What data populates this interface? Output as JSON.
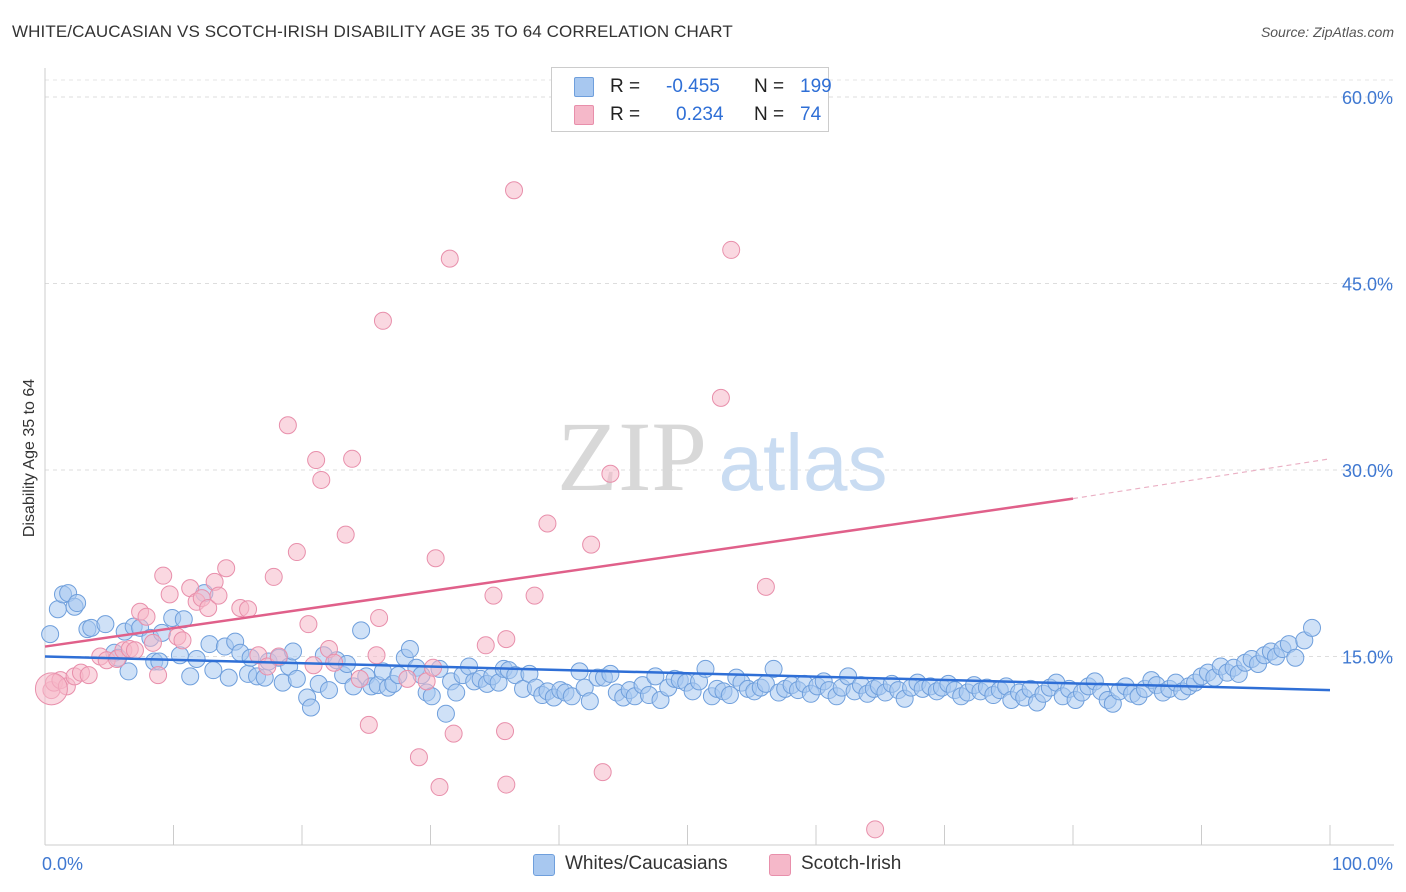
{
  "title": "WHITE/CAUCASIAN VS SCOTCH-IRISH DISABILITY AGE 35 TO 64 CORRELATION CHART",
  "source": "Source: ZipAtlas.com",
  "watermark": {
    "zip": "ZIP",
    "atlas": "atlas"
  },
  "legend_stats": [
    {
      "r_label": "R =",
      "r_value": "-0.455",
      "n_label": "N =",
      "n_value": "199",
      "color": "#a8c8f0"
    },
    {
      "r_label": "R =",
      "r_value": "0.234",
      "n_label": "N =",
      "n_value": "74",
      "color": "#f5b8c9"
    }
  ],
  "bottom_legend": [
    {
      "label": "Whites/Caucasians",
      "color": "#a8c8f0"
    },
    {
      "label": "Scotch-Irish",
      "color": "#f5b8c9"
    }
  ],
  "chart_data": {
    "type": "scatter",
    "title": "WHITE/CAUCASIAN VS SCOTCH-IRISH DISABILITY AGE 35 TO 64 CORRELATION CHART",
    "xlabel": "",
    "ylabel": "Disability Age 35 to 64",
    "xlim": [
      0,
      100
    ],
    "ylim": [
      0,
      60
    ],
    "x_tick_labels": [
      "0.0%",
      "100.0%"
    ],
    "y_ticks": [
      15,
      30,
      45,
      60
    ],
    "y_tick_labels": [
      "15.0%",
      "30.0%",
      "45.0%",
      "60.0%"
    ],
    "grid": true,
    "legend_position": "top-center",
    "series": [
      {
        "name": "Whites/Caucasians",
        "color": "#a8c8f0",
        "stroke": "#6f9fdc",
        "trend": {
          "x": [
            0,
            100
          ],
          "y": [
            15.0,
            12.3
          ],
          "color": "#2f6fd6"
        },
        "points": [
          [
            0.4,
            16.8
          ],
          [
            1.0,
            18.8
          ],
          [
            1.4,
            20.0
          ],
          [
            1.8,
            20.1
          ],
          [
            2.3,
            19.0
          ],
          [
            2.5,
            19.3
          ],
          [
            3.3,
            17.2
          ],
          [
            3.6,
            17.3
          ],
          [
            4.7,
            17.6
          ],
          [
            5.4,
            15.3
          ],
          [
            5.7,
            14.9
          ],
          [
            6.2,
            17.0
          ],
          [
            6.5,
            13.8
          ],
          [
            6.9,
            17.4
          ],
          [
            7.4,
            17.3
          ],
          [
            8.2,
            16.5
          ],
          [
            8.5,
            14.6
          ],
          [
            8.9,
            14.6
          ],
          [
            9.1,
            16.9
          ],
          [
            9.9,
            18.1
          ],
          [
            10.5,
            15.1
          ],
          [
            10.8,
            18.0
          ],
          [
            11.3,
            13.4
          ],
          [
            11.8,
            14.8
          ],
          [
            12.4,
            20.1
          ],
          [
            12.8,
            16.0
          ],
          [
            13.1,
            13.9
          ],
          [
            14.0,
            15.8
          ],
          [
            14.3,
            13.3
          ],
          [
            14.8,
            16.2
          ],
          [
            15.2,
            15.3
          ],
          [
            15.8,
            13.6
          ],
          [
            16.0,
            14.9
          ],
          [
            16.5,
            13.4
          ],
          [
            17.1,
            13.3
          ],
          [
            17.4,
            14.6
          ],
          [
            18.2,
            14.9
          ],
          [
            18.5,
            12.9
          ],
          [
            19.0,
            14.2
          ],
          [
            19.3,
            15.4
          ],
          [
            19.6,
            13.2
          ],
          [
            20.4,
            11.7
          ],
          [
            20.7,
            10.9
          ],
          [
            21.3,
            12.8
          ],
          [
            21.7,
            15.1
          ],
          [
            22.1,
            12.3
          ],
          [
            22.7,
            14.7
          ],
          [
            23.2,
            13.5
          ],
          [
            23.5,
            14.4
          ],
          [
            24.0,
            12.6
          ],
          [
            24.6,
            17.1
          ],
          [
            25.0,
            13.4
          ],
          [
            25.4,
            12.6
          ],
          [
            25.9,
            12.7
          ],
          [
            26.3,
            13.8
          ],
          [
            26.7,
            12.5
          ],
          [
            27.1,
            12.8
          ],
          [
            27.5,
            13.5
          ],
          [
            28.0,
            14.9
          ],
          [
            28.4,
            15.6
          ],
          [
            28.9,
            14.1
          ],
          [
            29.3,
            13.5
          ],
          [
            29.7,
            12.1
          ],
          [
            30.1,
            11.8
          ],
          [
            30.7,
            14.0
          ],
          [
            31.2,
            10.4
          ],
          [
            31.6,
            13.0
          ],
          [
            32.0,
            12.1
          ],
          [
            32.5,
            13.5
          ],
          [
            33.0,
            14.2
          ],
          [
            33.4,
            13.0
          ],
          [
            33.9,
            13.2
          ],
          [
            34.4,
            12.8
          ],
          [
            34.8,
            13.4
          ],
          [
            35.3,
            12.9
          ],
          [
            35.7,
            14.0
          ],
          [
            36.1,
            13.9
          ],
          [
            36.6,
            13.5
          ],
          [
            37.2,
            12.4
          ],
          [
            37.7,
            13.6
          ],
          [
            38.2,
            12.5
          ],
          [
            38.7,
            11.9
          ],
          [
            39.1,
            12.2
          ],
          [
            39.6,
            11.7
          ],
          [
            40.1,
            12.3
          ],
          [
            40.5,
            12.1
          ],
          [
            41.0,
            11.8
          ],
          [
            41.6,
            13.8
          ],
          [
            42.0,
            12.5
          ],
          [
            42.4,
            11.4
          ],
          [
            43.0,
            13.3
          ],
          [
            43.5,
            13.3
          ],
          [
            44.0,
            13.6
          ],
          [
            44.5,
            12.1
          ],
          [
            45.0,
            11.7
          ],
          [
            45.5,
            12.3
          ],
          [
            45.9,
            11.8
          ],
          [
            46.5,
            12.7
          ],
          [
            47.0,
            11.9
          ],
          [
            47.5,
            13.4
          ],
          [
            47.9,
            11.5
          ],
          [
            48.5,
            12.5
          ],
          [
            49.0,
            13.2
          ],
          [
            49.4,
            13.1
          ],
          [
            49.9,
            12.9
          ],
          [
            50.4,
            12.2
          ],
          [
            50.9,
            13.0
          ],
          [
            51.4,
            14.0
          ],
          [
            51.9,
            11.8
          ],
          [
            52.3,
            12.4
          ],
          [
            52.8,
            12.2
          ],
          [
            53.3,
            11.9
          ],
          [
            53.8,
            13.3
          ],
          [
            54.2,
            12.9
          ],
          [
            54.7,
            12.4
          ],
          [
            55.2,
            12.2
          ],
          [
            55.7,
            12.5
          ],
          [
            56.1,
            12.8
          ],
          [
            56.7,
            14.0
          ],
          [
            57.1,
            12.1
          ],
          [
            57.6,
            12.4
          ],
          [
            58.1,
            12.7
          ],
          [
            58.6,
            12.3
          ],
          [
            59.1,
            12.8
          ],
          [
            59.6,
            12.0
          ],
          [
            60.1,
            12.6
          ],
          [
            60.6,
            13.0
          ],
          [
            61.0,
            12.3
          ],
          [
            61.6,
            11.8
          ],
          [
            62.0,
            12.5
          ],
          [
            62.5,
            13.4
          ],
          [
            63.0,
            12.2
          ],
          [
            63.5,
            12.7
          ],
          [
            64.0,
            12.0
          ],
          [
            64.5,
            12.4
          ],
          [
            64.9,
            12.6
          ],
          [
            65.4,
            12.1
          ],
          [
            65.9,
            12.8
          ],
          [
            66.4,
            12.3
          ],
          [
            66.9,
            11.6
          ],
          [
            67.4,
            12.5
          ],
          [
            67.9,
            12.9
          ],
          [
            68.3,
            12.4
          ],
          [
            68.9,
            12.6
          ],
          [
            69.4,
            12.2
          ],
          [
            69.8,
            12.5
          ],
          [
            70.3,
            12.8
          ],
          [
            70.8,
            12.3
          ],
          [
            71.3,
            11.8
          ],
          [
            71.8,
            12.1
          ],
          [
            72.3,
            12.7
          ],
          [
            72.8,
            12.2
          ],
          [
            73.3,
            12.5
          ],
          [
            73.8,
            11.9
          ],
          [
            74.3,
            12.3
          ],
          [
            74.8,
            12.6
          ],
          [
            75.2,
            11.5
          ],
          [
            75.8,
            12.1
          ],
          [
            76.2,
            11.7
          ],
          [
            76.7,
            12.4
          ],
          [
            77.2,
            11.3
          ],
          [
            77.7,
            12.0
          ],
          [
            78.2,
            12.5
          ],
          [
            78.7,
            12.9
          ],
          [
            79.2,
            11.8
          ],
          [
            79.7,
            12.4
          ],
          [
            80.2,
            11.5
          ],
          [
            80.7,
            12.1
          ],
          [
            81.2,
            12.6
          ],
          [
            81.7,
            13.0
          ],
          [
            82.2,
            12.2
          ],
          [
            82.7,
            11.5
          ],
          [
            83.1,
            11.2
          ],
          [
            83.6,
            12.2
          ],
          [
            84.1,
            12.6
          ],
          [
            84.6,
            12.0
          ],
          [
            85.1,
            11.8
          ],
          [
            85.6,
            12.4
          ],
          [
            86.1,
            13.1
          ],
          [
            86.5,
            12.7
          ],
          [
            87.0,
            12.1
          ],
          [
            87.5,
            12.4
          ],
          [
            88.0,
            12.9
          ],
          [
            88.5,
            12.2
          ],
          [
            89.0,
            12.6
          ],
          [
            89.5,
            12.9
          ],
          [
            90.0,
            13.4
          ],
          [
            90.5,
            13.7
          ],
          [
            91.0,
            13.3
          ],
          [
            91.5,
            14.2
          ],
          [
            92.0,
            13.7
          ],
          [
            92.5,
            14.1
          ],
          [
            92.9,
            13.6
          ],
          [
            93.4,
            14.5
          ],
          [
            93.9,
            14.8
          ],
          [
            94.4,
            14.4
          ],
          [
            94.9,
            15.1
          ],
          [
            95.4,
            15.4
          ],
          [
            95.8,
            15.0
          ],
          [
            96.3,
            15.6
          ],
          [
            96.8,
            16.0
          ],
          [
            97.3,
            14.9
          ],
          [
            98.0,
            16.3
          ],
          [
            98.6,
            17.3
          ]
        ]
      },
      {
        "name": "Scotch-Irish",
        "color": "#f5b8c9",
        "stroke": "#e88fab",
        "trend": {
          "x": [
            0,
            80
          ],
          "y": [
            15.8,
            27.7
          ],
          "dashed_to": [
            100,
            30.9
          ],
          "color": "#e0608a"
        },
        "points": [
          [
            0.5,
            12.3
          ],
          [
            0.7,
            12.9
          ],
          [
            1.2,
            13.1
          ],
          [
            1.7,
            12.6
          ],
          [
            2.3,
            13.4
          ],
          [
            2.8,
            13.7
          ],
          [
            3.4,
            13.5
          ],
          [
            4.3,
            15.0
          ],
          [
            4.8,
            14.7
          ],
          [
            5.6,
            14.8
          ],
          [
            6.1,
            15.5
          ],
          [
            6.6,
            15.6
          ],
          [
            7.0,
            15.5
          ],
          [
            7.4,
            18.6
          ],
          [
            7.9,
            18.2
          ],
          [
            8.4,
            16.1
          ],
          [
            8.8,
            13.5
          ],
          [
            9.2,
            21.5
          ],
          [
            9.7,
            20.0
          ],
          [
            10.3,
            16.6
          ],
          [
            10.7,
            16.3
          ],
          [
            11.3,
            20.5
          ],
          [
            11.8,
            19.4
          ],
          [
            12.2,
            19.7
          ],
          [
            12.7,
            18.9
          ],
          [
            13.2,
            21.0
          ],
          [
            13.5,
            19.9
          ],
          [
            14.1,
            22.1
          ],
          [
            15.2,
            18.9
          ],
          [
            15.8,
            18.8
          ],
          [
            16.6,
            15.1
          ],
          [
            17.3,
            14.2
          ],
          [
            17.8,
            21.4
          ],
          [
            18.2,
            15.0
          ],
          [
            18.9,
            33.6
          ],
          [
            19.6,
            23.4
          ],
          [
            20.5,
            17.6
          ],
          [
            20.9,
            14.3
          ],
          [
            21.1,
            30.8
          ],
          [
            21.5,
            29.2
          ],
          [
            22.1,
            15.6
          ],
          [
            22.5,
            14.5
          ],
          [
            23.4,
            24.8
          ],
          [
            23.9,
            30.9
          ],
          [
            24.5,
            13.2
          ],
          [
            25.2,
            9.5
          ],
          [
            25.8,
            15.1
          ],
          [
            26.0,
            18.1
          ],
          [
            26.3,
            42.0
          ],
          [
            28.2,
            13.2
          ],
          [
            29.1,
            6.9
          ],
          [
            29.7,
            13.0
          ],
          [
            30.2,
            14.1
          ],
          [
            30.4,
            22.9
          ],
          [
            30.7,
            4.5
          ],
          [
            31.5,
            47.0
          ],
          [
            31.8,
            8.8
          ],
          [
            34.3,
            15.9
          ],
          [
            34.9,
            19.9
          ],
          [
            35.8,
            9.0
          ],
          [
            35.9,
            16.4
          ],
          [
            35.9,
            4.7
          ],
          [
            36.5,
            52.5
          ],
          [
            38.1,
            19.9
          ],
          [
            39.1,
            25.7
          ],
          [
            42.5,
            24.0
          ],
          [
            43.4,
            5.7
          ],
          [
            44.0,
            29.7
          ],
          [
            52.6,
            35.8
          ],
          [
            53.4,
            47.7
          ],
          [
            56.1,
            20.6
          ],
          [
            64.6,
            1.1
          ]
        ]
      }
    ]
  }
}
